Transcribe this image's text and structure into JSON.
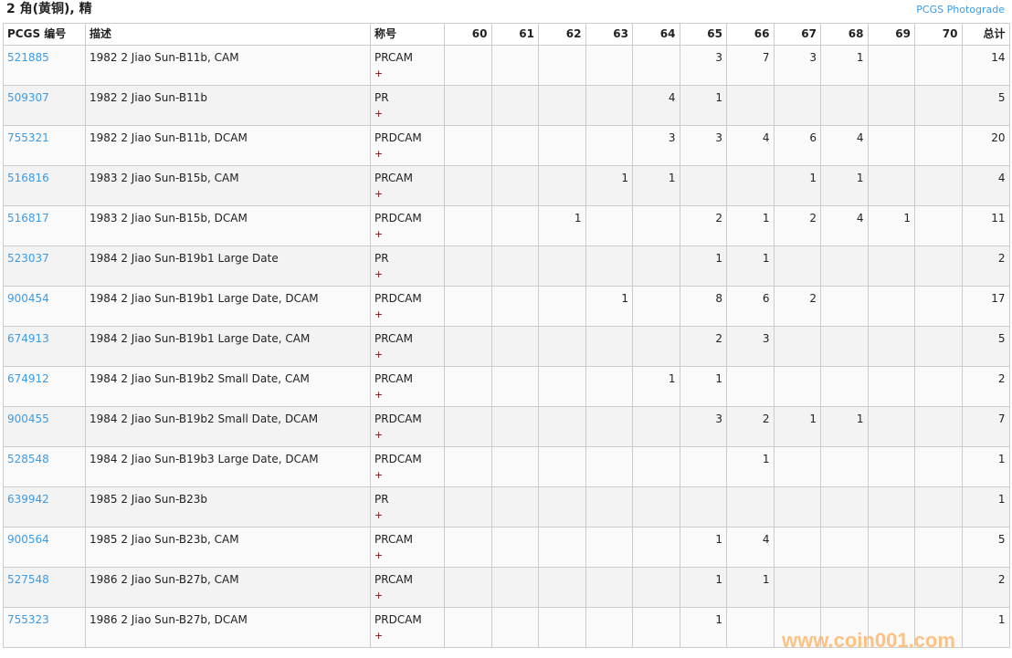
{
  "title": "2 角(黄铜), 精",
  "photograde_link": "PCGS Photograde",
  "watermark": "www.coin001.com",
  "colors": {
    "link": "#3a9be8",
    "plus": "#7a1010",
    "watermark": "#ffb870"
  },
  "headers": {
    "id": "PCGS 编号",
    "desc": "描述",
    "designation": "称号",
    "grades": [
      "60",
      "61",
      "62",
      "63",
      "64",
      "65",
      "66",
      "67",
      "68",
      "69",
      "70"
    ],
    "total": "总计"
  },
  "rows": [
    {
      "id": "521885",
      "desc": "1982 2 Jiao Sun-B11b, CAM",
      "designation": "PRCAM",
      "plus": "+",
      "counts": [
        "",
        "",
        "",
        "",
        "",
        "3",
        "7",
        "3",
        "1",
        "",
        ""
      ],
      "total": "14"
    },
    {
      "id": "509307",
      "desc": "1982 2 Jiao Sun-B11b",
      "designation": "PR",
      "plus": "+",
      "counts": [
        "",
        "",
        "",
        "",
        "4",
        "1",
        "",
        "",
        "",
        "",
        ""
      ],
      "total": "5"
    },
    {
      "id": "755321",
      "desc": "1982 2 Jiao Sun-B11b, DCAM",
      "designation": "PRDCAM",
      "plus": "+",
      "counts": [
        "",
        "",
        "",
        "",
        "3",
        "3",
        "4",
        "6",
        "4",
        "",
        ""
      ],
      "total": "20"
    },
    {
      "id": "516816",
      "desc": "1983 2 Jiao Sun-B15b, CAM",
      "designation": "PRCAM",
      "plus": "+",
      "counts": [
        "",
        "",
        "",
        "1",
        "1",
        "",
        "",
        "1",
        "1",
        "",
        ""
      ],
      "total": "4"
    },
    {
      "id": "516817",
      "desc": "1983 2 Jiao Sun-B15b, DCAM",
      "designation": "PRDCAM",
      "plus": "+",
      "counts": [
        "",
        "",
        "1",
        "",
        "",
        "2",
        "1",
        "2",
        "4",
        "1",
        ""
      ],
      "total": "11"
    },
    {
      "id": "523037",
      "desc": "1984 2 Jiao Sun-B19b1 Large Date",
      "designation": "PR",
      "plus": "+",
      "counts": [
        "",
        "",
        "",
        "",
        "",
        "1",
        "1",
        "",
        "",
        "",
        ""
      ],
      "total": "2"
    },
    {
      "id": "900454",
      "desc": "1984 2 Jiao Sun-B19b1 Large Date, DCAM",
      "designation": "PRDCAM",
      "plus": "+",
      "counts": [
        "",
        "",
        "",
        "1",
        "",
        "8",
        "6",
        "2",
        "",
        "",
        ""
      ],
      "total": "17"
    },
    {
      "id": "674913",
      "desc": "1984 2 Jiao Sun-B19b1 Large Date, CAM",
      "designation": "PRCAM",
      "plus": "+",
      "counts": [
        "",
        "",
        "",
        "",
        "",
        "2",
        "3",
        "",
        "",
        "",
        ""
      ],
      "total": "5"
    },
    {
      "id": "674912",
      "desc": "1984 2 Jiao Sun-B19b2 Small Date, CAM",
      "designation": "PRCAM",
      "plus": "+",
      "counts": [
        "",
        "",
        "",
        "",
        "1",
        "1",
        "",
        "",
        "",
        "",
        ""
      ],
      "total": "2"
    },
    {
      "id": "900455",
      "desc": "1984 2 Jiao Sun-B19b2 Small Date, DCAM",
      "designation": "PRDCAM",
      "plus": "+",
      "counts": [
        "",
        "",
        "",
        "",
        "",
        "3",
        "2",
        "1",
        "1",
        "",
        ""
      ],
      "total": "7"
    },
    {
      "id": "528548",
      "desc": "1984 2 Jiao Sun-B19b3 Large Date, DCAM",
      "designation": "PRDCAM",
      "plus": "+",
      "counts": [
        "",
        "",
        "",
        "",
        "",
        "",
        "1",
        "",
        "",
        "",
        ""
      ],
      "total": "1"
    },
    {
      "id": "639942",
      "desc": "1985 2 Jiao Sun-B23b",
      "designation": "PR",
      "plus": "+",
      "counts": [
        "",
        "",
        "",
        "",
        "",
        "",
        "",
        "",
        "",
        "",
        ""
      ],
      "total": "1"
    },
    {
      "id": "900564",
      "desc": "1985 2 Jiao Sun-B23b, CAM",
      "designation": "PRCAM",
      "plus": "+",
      "counts": [
        "",
        "",
        "",
        "",
        "",
        "1",
        "4",
        "",
        "",
        "",
        ""
      ],
      "total": "5"
    },
    {
      "id": "527548",
      "desc": "1986 2 Jiao Sun-B27b, CAM",
      "designation": "PRCAM",
      "plus": "+",
      "counts": [
        "",
        "",
        "",
        "",
        "",
        "1",
        "1",
        "",
        "",
        "",
        ""
      ],
      "total": "2"
    },
    {
      "id": "755323",
      "desc": "1986 2 Jiao Sun-B27b, DCAM",
      "designation": "PRDCAM",
      "plus": "+",
      "counts": [
        "",
        "",
        "",
        "",
        "",
        "1",
        "",
        "",
        "",
        "",
        ""
      ],
      "total": "1"
    }
  ]
}
